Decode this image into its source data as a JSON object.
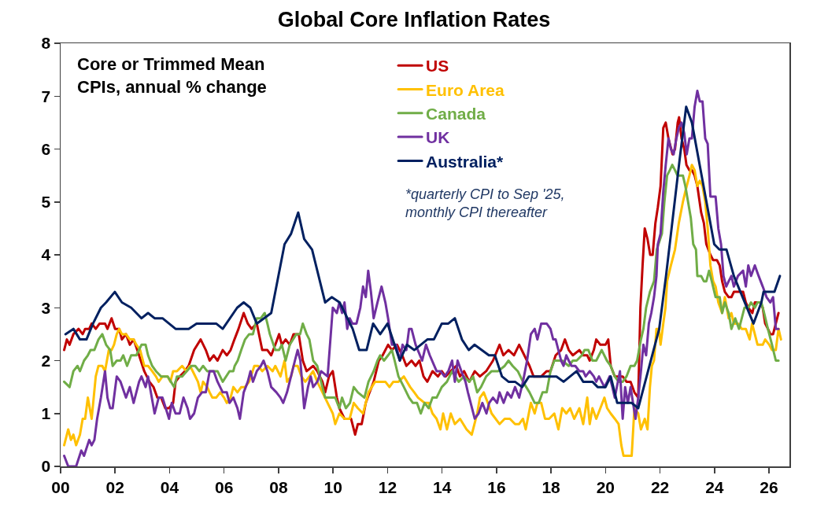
{
  "chart_data": {
    "type": "line",
    "title": "Global Core Inflation Rates",
    "annotations": [
      "Core or Trimmed Mean\nCPIs, annual % change",
      "*quarterly CPI to Sep '25,\nmonthly CPI thereafter"
    ],
    "xlim": [
      2000,
      2026.75
    ],
    "xticks": [
      {
        "value": 2000,
        "label": "00"
      },
      {
        "value": 2002,
        "label": "02"
      },
      {
        "value": 2004,
        "label": "04"
      },
      {
        "value": 2006,
        "label": "06"
      },
      {
        "value": 2008,
        "label": "08"
      },
      {
        "value": 2010,
        "label": "10"
      },
      {
        "value": 2012,
        "label": "12"
      },
      {
        "value": 2014,
        "label": "14"
      },
      {
        "value": 2016,
        "label": "16"
      },
      {
        "value": 2018,
        "label": "18"
      },
      {
        "value": 2020,
        "label": "20"
      },
      {
        "value": 2022,
        "label": "22"
      },
      {
        "value": 2024,
        "label": "24"
      },
      {
        "value": 2026,
        "label": "26"
      }
    ],
    "ylim": [
      0,
      8
    ],
    "yticks": [
      0,
      1,
      2,
      3,
      4,
      5,
      6,
      7,
      8
    ],
    "grid": false,
    "legend": "top",
    "series": [
      {
        "name": "US",
        "color": "#c00000",
        "x": [
          2000.13,
          2000.23,
          2000.33,
          2000.47,
          2000.66,
          2000.81,
          2000.9,
          2001.05,
          2001.14,
          2001.29,
          2001.43,
          2001.63,
          2001.72,
          2001.87,
          2002.0,
          2002.15,
          2002.25,
          2002.4,
          2002.54,
          2002.68,
          2002.88,
          2003.07,
          2003.26,
          2003.41,
          2003.55,
          2003.69,
          2003.84,
          2003.98,
          2004.13,
          2004.22,
          2004.37,
          2004.56,
          2004.7,
          2004.9,
          2005.14,
          2005.33,
          2005.47,
          2005.62,
          2005.76,
          2005.95,
          2006.1,
          2006.24,
          2006.38,
          2006.53,
          2006.72,
          2006.87,
          2007.01,
          2007.2,
          2007.4,
          2007.59,
          2007.73,
          2007.88,
          2008.02,
          2008.12,
          2008.26,
          2008.41,
          2008.55,
          2008.74,
          2008.89,
          2009.03,
          2009.27,
          2009.42,
          2009.61,
          2009.71,
          2009.85,
          2009.99,
          2010.14,
          2010.23,
          2010.42,
          2010.66,
          2010.81,
          2010.91,
          2011.05,
          2011.2,
          2011.34,
          2011.49,
          2011.68,
          2011.82,
          2012.02,
          2012.16,
          2012.35,
          2012.54,
          2012.69,
          2012.88,
          2013.03,
          2013.17,
          2013.32,
          2013.46,
          2013.65,
          2013.85,
          2013.99,
          2014.13,
          2014.32,
          2014.52,
          2014.66,
          2014.81,
          2015.0,
          2015.2,
          2015.39,
          2015.62,
          2015.87,
          2016.11,
          2016.25,
          2016.44,
          2016.64,
          2016.83,
          2017.02,
          2017.21,
          2017.36,
          2017.64,
          2017.84,
          2017.98,
          2018.17,
          2018.37,
          2018.51,
          2018.65,
          2018.8,
          2019.04,
          2019.18,
          2019.33,
          2019.42,
          2019.57,
          2019.66,
          2019.81,
          2020.0,
          2020.1,
          2020.19,
          2020.34,
          2020.48,
          2020.63,
          2020.77,
          2020.92,
          2021.06,
          2021.2,
          2021.28,
          2021.36,
          2021.44,
          2021.54,
          2021.64,
          2021.73,
          2021.83,
          2021.92,
          2022.02,
          2022.12,
          2022.21,
          2022.31,
          2022.46,
          2022.55,
          2022.65,
          2022.7,
          2022.79,
          2022.89,
          2022.97,
          2023.08,
          2023.17,
          2023.27,
          2023.37,
          2023.51,
          2023.61,
          2023.7,
          2023.85,
          2023.95,
          2024.09,
          2024.19,
          2024.28,
          2024.38,
          2024.52,
          2024.62,
          2024.71,
          2024.9,
          2025.05,
          2025.15,
          2025.24,
          2025.39,
          2025.48,
          2025.67,
          2025.77,
          2025.86,
          2025.96,
          2026.05,
          2026.15,
          2026.25,
          2026.35
        ],
        "values": [
          2.2,
          2.4,
          2.3,
          2.5,
          2.6,
          2.5,
          2.6,
          2.6,
          2.7,
          2.6,
          2.7,
          2.7,
          2.6,
          2.8,
          2.6,
          2.6,
          2.4,
          2.5,
          2.3,
          2.4,
          2.1,
          1.8,
          1.6,
          1.5,
          1.3,
          1.3,
          1.1,
          1.1,
          1.2,
          1.6,
          1.7,
          1.8,
          1.9,
          2.2,
          2.4,
          2.2,
          2.0,
          2.1,
          2.0,
          2.2,
          2.1,
          2.2,
          2.4,
          2.6,
          2.9,
          2.7,
          2.6,
          2.7,
          2.2,
          2.2,
          2.1,
          2.3,
          2.5,
          2.3,
          2.4,
          2.3,
          2.5,
          2.5,
          2.0,
          1.8,
          1.9,
          1.8,
          1.6,
          1.4,
          1.7,
          1.8,
          1.3,
          1.1,
          0.9,
          0.9,
          0.6,
          0.8,
          0.8,
          1.2,
          1.4,
          1.6,
          2.0,
          2.1,
          2.3,
          2.2,
          2.3,
          2.1,
          1.9,
          2.0,
          1.9,
          2.0,
          1.7,
          1.6,
          1.8,
          1.7,
          1.8,
          1.7,
          1.8,
          1.9,
          1.7,
          1.8,
          1.6,
          1.8,
          1.7,
          1.8,
          2.0,
          2.3,
          2.1,
          2.2,
          2.1,
          2.3,
          2.1,
          1.9,
          1.7,
          1.7,
          1.8,
          1.8,
          2.1,
          2.2,
          2.4,
          2.2,
          2.1,
          2.2,
          2.1,
          2.1,
          2.0,
          2.2,
          2.4,
          2.3,
          2.3,
          2.4,
          1.9,
          1.7,
          1.7,
          1.7,
          1.6,
          1.6,
          1.4,
          1.3,
          3.0,
          3.8,
          4.5,
          4.3,
          4.0,
          4.0,
          4.6,
          4.9,
          5.3,
          6.4,
          6.5,
          6.2,
          5.9,
          6.0,
          6.5,
          6.6,
          6.2,
          6.0,
          5.7,
          5.6,
          5.6,
          5.5,
          5.3,
          4.8,
          4.6,
          4.2,
          4.0,
          3.9,
          3.9,
          3.8,
          3.5,
          3.3,
          3.2,
          3.2,
          3.3,
          3.3,
          3.3,
          3.1,
          3.0,
          2.9,
          3.1,
          3.1,
          3.0,
          2.7,
          2.6,
          2.5,
          2.5,
          2.7,
          2.9
        ]
      },
      {
        "name": "Euro Area",
        "color": "#ffc000",
        "x": [
          2000.13,
          2000.28,
          2000.38,
          2000.47,
          2000.57,
          2000.71,
          2000.81,
          2000.9,
          2001.0,
          2001.14,
          2001.29,
          2001.39,
          2001.53,
          2001.63,
          2001.77,
          2001.87,
          2001.96,
          2002.06,
          2002.15,
          2002.25,
          2002.4,
          2002.54,
          2002.68,
          2002.78,
          2002.92,
          2003.07,
          2003.21,
          2003.36,
          2003.5,
          2003.6,
          2003.74,
          2003.93,
          2004.03,
          2004.13,
          2004.27,
          2004.46,
          2004.61,
          2004.75,
          2004.85,
          2005.04,
          2005.14,
          2005.23,
          2005.38,
          2005.47,
          2005.57,
          2005.71,
          2005.86,
          2006.0,
          2006.1,
          2006.24,
          2006.34,
          2006.49,
          2006.63,
          2006.77,
          2006.92,
          2007.11,
          2007.25,
          2007.4,
          2007.59,
          2007.78,
          2007.88,
          2008.07,
          2008.22,
          2008.31,
          2008.46,
          2008.55,
          2008.7,
          2008.84,
          2008.98,
          2009.13,
          2009.27,
          2009.42,
          2009.61,
          2009.8,
          2009.99,
          2010.08,
          2010.23,
          2010.42,
          2010.61,
          2010.76,
          2010.91,
          2011.1,
          2011.3,
          2011.54,
          2011.68,
          2011.92,
          2012.07,
          2012.21,
          2012.4,
          2012.6,
          2012.83,
          2012.98,
          2013.12,
          2013.36,
          2013.51,
          2013.65,
          2013.8,
          2013.94,
          2014.04,
          2014.18,
          2014.32,
          2014.47,
          2014.66,
          2014.9,
          2015.09,
          2015.19,
          2015.29,
          2015.39,
          2015.53,
          2015.68,
          2015.82,
          2016.11,
          2016.3,
          2016.49,
          2016.68,
          2016.83,
          2016.97,
          2017.07,
          2017.26,
          2017.4,
          2017.5,
          2017.64,
          2017.78,
          2017.93,
          2018.12,
          2018.27,
          2018.41,
          2018.56,
          2018.7,
          2018.85,
          2019.04,
          2019.18,
          2019.33,
          2019.42,
          2019.52,
          2019.66,
          2019.81,
          2019.96,
          2020.06,
          2020.19,
          2020.34,
          2020.48,
          2020.58,
          2020.66,
          2020.96,
          2021.06,
          2021.2,
          2021.3,
          2021.44,
          2021.54,
          2021.63,
          2021.7,
          2021.78,
          2021.87,
          2021.96,
          2022.02,
          2022.12,
          2022.2,
          2022.26,
          2022.4,
          2022.55,
          2022.69,
          2022.84,
          2022.93,
          2023.08,
          2023.17,
          2023.27,
          2023.37,
          2023.46,
          2023.56,
          2023.66,
          2023.75,
          2023.85,
          2023.95,
          2024.04,
          2024.14,
          2024.28,
          2024.38,
          2024.52,
          2024.62,
          2024.71,
          2024.86,
          2025.0,
          2025.15,
          2025.29,
          2025.38,
          2025.48,
          2025.58,
          2025.77,
          2025.86,
          2026.01,
          2026.11,
          2026.25,
          2026.35,
          2026.44
        ],
        "values": [
          0.4,
          0.7,
          0.5,
          0.6,
          0.4,
          0.6,
          0.9,
          0.9,
          1.3,
          0.9,
          1.7,
          1.9,
          1.9,
          1.8,
          2.2,
          2.2,
          2.3,
          2.5,
          2.6,
          2.5,
          2.5,
          2.4,
          2.4,
          2.3,
          2.2,
          1.9,
          1.9,
          1.8,
          1.7,
          1.6,
          1.7,
          1.7,
          1.6,
          1.8,
          1.8,
          1.9,
          1.8,
          1.9,
          1.8,
          1.6,
          1.4,
          1.6,
          1.5,
          1.4,
          1.3,
          1.3,
          1.4,
          1.3,
          1.2,
          1.3,
          1.5,
          1.4,
          1.5,
          1.5,
          1.6,
          1.9,
          1.9,
          1.8,
          1.9,
          1.8,
          1.9,
          1.7,
          2.0,
          1.6,
          1.7,
          1.9,
          1.9,
          1.7,
          1.6,
          1.7,
          1.8,
          1.6,
          1.4,
          1.2,
          1.0,
          0.8,
          1.0,
          0.9,
          0.9,
          1.2,
          1.1,
          1.0,
          1.4,
          1.6,
          1.6,
          1.6,
          1.5,
          1.6,
          1.6,
          1.7,
          1.5,
          1.4,
          1.3,
          1.2,
          1.2,
          1.0,
          0.9,
          0.7,
          1.0,
          0.7,
          1.0,
          0.8,
          0.9,
          0.7,
          0.6,
          0.8,
          1.0,
          1.3,
          1.4,
          1.2,
          1.0,
          0.8,
          0.9,
          0.9,
          0.8,
          0.8,
          0.9,
          0.7,
          1.2,
          1.0,
          1.2,
          1.2,
          0.9,
          0.9,
          1.0,
          0.7,
          1.1,
          1.0,
          1.1,
          0.9,
          1.1,
          0.8,
          1.3,
          0.8,
          1.1,
          0.9,
          1.1,
          1.3,
          1.1,
          1.0,
          0.9,
          0.8,
          0.4,
          0.2,
          0.2,
          1.1,
          1.0,
          0.7,
          0.9,
          0.7,
          1.5,
          1.9,
          2.0,
          2.6,
          2.6,
          2.3,
          2.7,
          3.0,
          3.5,
          3.8,
          4.1,
          4.6,
          5.0,
          5.2,
          5.5,
          5.7,
          5.6,
          5.3,
          5.4,
          5.3,
          5.0,
          4.5,
          3.8,
          3.5,
          3.4,
          3.1,
          2.9,
          3.2,
          2.8,
          2.9,
          2.7,
          2.7,
          2.6,
          2.6,
          2.4,
          2.7,
          2.5,
          2.3,
          2.3,
          2.4,
          2.3,
          2.2,
          2.2,
          2.6,
          2.4
        ]
      },
      {
        "name": "Canada",
        "color": "#70ad47",
        "x": [
          2000.13,
          2000.33,
          2000.47,
          2000.62,
          2000.71,
          2000.86,
          2001.0,
          2001.1,
          2001.24,
          2001.39,
          2001.53,
          2001.67,
          2001.82,
          2001.91,
          2002.06,
          2002.2,
          2002.3,
          2002.44,
          2002.59,
          2002.78,
          2002.97,
          2003.12,
          2003.21,
          2003.36,
          2003.5,
          2003.69,
          2003.93,
          2004.17,
          2004.27,
          2004.46,
          2004.8,
          2004.94,
          2005.09,
          2005.23,
          2005.38,
          2005.57,
          2005.76,
          2005.95,
          2006.2,
          2006.34,
          2006.39,
          2006.5,
          2006.63,
          2006.77,
          2006.92,
          2007.06,
          2007.2,
          2007.35,
          2007.49,
          2007.59,
          2007.68,
          2007.88,
          2008.02,
          2008.12,
          2008.26,
          2008.41,
          2008.65,
          2008.79,
          2008.89,
          2009.03,
          2009.13,
          2009.27,
          2009.42,
          2009.56,
          2009.71,
          2010.08,
          2010.23,
          2010.33,
          2010.47,
          2010.62,
          2010.76,
          2010.91,
          2011.15,
          2011.3,
          2011.49,
          2011.63,
          2011.73,
          2011.87,
          2012.02,
          2012.16,
          2012.26,
          2012.4,
          2012.6,
          2012.79,
          2012.93,
          2013.08,
          2013.22,
          2013.36,
          2013.51,
          2013.65,
          2013.8,
          2013.99,
          2014.18,
          2014.37,
          2014.61,
          2014.81,
          2015.0,
          2015.14,
          2015.29,
          2015.43,
          2015.62,
          2015.82,
          2016.06,
          2016.3,
          2016.44,
          2016.59,
          2016.78,
          2016.97,
          2017.21,
          2017.4,
          2017.55,
          2017.69,
          2017.84,
          2017.98,
          2018.12,
          2018.27,
          2018.41,
          2018.65,
          2018.8,
          2018.94,
          2019.13,
          2019.23,
          2019.37,
          2019.52,
          2019.66,
          2019.86,
          2020.05,
          2020.19,
          2020.34,
          2020.48,
          2020.63,
          2020.77,
          2020.92,
          2021.06,
          2021.16,
          2021.3,
          2021.39,
          2021.49,
          2021.63,
          2021.78,
          2021.88,
          2022.07,
          2022.16,
          2022.26,
          2022.36,
          2022.45,
          2022.55,
          2022.64,
          2022.74,
          2022.84,
          2022.93,
          2023.03,
          2023.13,
          2023.22,
          2023.32,
          2023.37,
          2023.51,
          2023.61,
          2023.7,
          2023.8,
          2023.9,
          2024.04,
          2024.19,
          2024.28,
          2024.38,
          2024.52,
          2024.62,
          2024.76,
          2024.9,
          2025.1,
          2025.24,
          2025.34,
          2025.48,
          2025.58,
          2025.72,
          2025.82,
          2025.96,
          2026.11,
          2026.25,
          2026.35
        ],
        "values": [
          1.6,
          1.5,
          1.8,
          1.9,
          1.8,
          2.0,
          2.1,
          2.2,
          2.2,
          2.4,
          2.5,
          2.3,
          2.2,
          1.9,
          2.0,
          2.0,
          2.1,
          1.9,
          2.1,
          2.1,
          2.3,
          2.3,
          2.1,
          1.9,
          1.8,
          1.7,
          1.7,
          1.5,
          1.7,
          1.7,
          1.9,
          1.9,
          1.8,
          1.9,
          1.8,
          1.8,
          1.8,
          1.6,
          1.8,
          1.8,
          1.9,
          2.0,
          2.2,
          2.4,
          2.5,
          2.5,
          2.8,
          2.8,
          2.9,
          2.7,
          2.5,
          2.2,
          2.2,
          2.3,
          2.0,
          2.3,
          2.5,
          2.5,
          2.7,
          2.5,
          2.4,
          2.0,
          1.9,
          1.6,
          1.3,
          1.3,
          1.1,
          1.3,
          1.1,
          1.2,
          1.5,
          1.4,
          1.3,
          1.6,
          1.8,
          2.0,
          2.1,
          2.0,
          2.1,
          2.2,
          2.0,
          1.7,
          1.5,
          1.3,
          1.2,
          1.2,
          1.0,
          1.2,
          1.1,
          1.3,
          1.3,
          1.5,
          1.6,
          1.8,
          1.6,
          1.7,
          1.6,
          1.7,
          1.4,
          1.5,
          1.7,
          1.8,
          1.8,
          1.9,
          2.0,
          1.9,
          1.8,
          1.6,
          1.4,
          1.2,
          1.2,
          1.4,
          1.4,
          1.8,
          2.0,
          2.0,
          2.0,
          1.9,
          2.0,
          2.0,
          2.1,
          2.2,
          2.2,
          2.0,
          2.0,
          2.2,
          2.0,
          1.9,
          1.7,
          1.6,
          1.6,
          1.7,
          1.9,
          1.9,
          2.0,
          2.4,
          2.6,
          3.0,
          3.3,
          3.5,
          4.1,
          4.4,
          5.0,
          5.5,
          5.6,
          5.7,
          5.6,
          5.5,
          5.5,
          5.5,
          5.3,
          5.0,
          4.7,
          4.2,
          4.1,
          3.6,
          3.6,
          3.5,
          3.5,
          3.7,
          3.5,
          3.2,
          3.2,
          2.9,
          3.1,
          2.9,
          2.6,
          2.8,
          2.6,
          3.0,
          3.0,
          3.1,
          3.0,
          3.1,
          3.1,
          2.9,
          2.6,
          2.3,
          2.0,
          2.0
        ]
      },
      {
        "name": "UK",
        "color": "#7030a0",
        "x": [
          2000.13,
          2000.28,
          2000.42,
          2000.57,
          2000.76,
          2000.86,
          2001.05,
          2001.14,
          2001.24,
          2001.34,
          2001.48,
          2001.63,
          2001.72,
          2001.82,
          2001.91,
          2002.06,
          2002.2,
          2002.4,
          2002.54,
          2002.68,
          2002.88,
          2002.97,
          2003.12,
          2003.21,
          2003.45,
          2003.6,
          2003.74,
          2003.98,
          2004.08,
          2004.22,
          2004.37,
          2004.51,
          2004.66,
          2004.75,
          2004.9,
          2005.04,
          2005.19,
          2005.33,
          2005.47,
          2005.62,
          2005.76,
          2005.95,
          2006.1,
          2006.2,
          2006.34,
          2006.49,
          2006.58,
          2006.72,
          2006.87,
          2006.97,
          2007.06,
          2007.2,
          2007.35,
          2007.45,
          2007.59,
          2007.73,
          2007.92,
          2008.07,
          2008.17,
          2008.31,
          2008.6,
          2008.7,
          2008.8,
          2008.94,
          2009.08,
          2009.18,
          2009.27,
          2009.42,
          2009.56,
          2009.8,
          2009.99,
          2010.14,
          2010.23,
          2010.33,
          2010.42,
          2010.52,
          2010.61,
          2010.71,
          2010.86,
          2011.0,
          2011.1,
          2011.2,
          2011.29,
          2011.39,
          2011.49,
          2011.63,
          2011.78,
          2011.92,
          2012.02,
          2012.16,
          2012.31,
          2012.45,
          2012.55,
          2012.69,
          2012.79,
          2012.88,
          2013.03,
          2013.27,
          2013.41,
          2013.55,
          2013.8,
          2013.94,
          2014.09,
          2014.23,
          2014.37,
          2014.47,
          2014.57,
          2014.71,
          2014.86,
          2014.95,
          2015.2,
          2015.34,
          2015.48,
          2015.63,
          2015.73,
          2015.87,
          2016.02,
          2016.11,
          2016.26,
          2016.4,
          2016.54,
          2016.68,
          2016.83,
          2016.97,
          2017.12,
          2017.26,
          2017.4,
          2017.5,
          2017.64,
          2017.84,
          2017.98,
          2018.08,
          2018.17,
          2018.37,
          2018.46,
          2018.56,
          2018.65,
          2018.75,
          2018.89,
          2019.04,
          2019.18,
          2019.27,
          2019.42,
          2019.57,
          2019.66,
          2019.76,
          2019.86,
          2019.96,
          2020.06,
          2020.15,
          2020.25,
          2020.34,
          2020.53,
          2020.63,
          2020.72,
          2020.82,
          2020.92,
          2021.1,
          2021.2,
          2021.3,
          2021.39,
          2021.49,
          2021.59,
          2021.68,
          2021.78,
          2021.87,
          2021.92,
          2022.02,
          2022.12,
          2022.21,
          2022.31,
          2022.4,
          2022.5,
          2022.6,
          2022.69,
          2022.79,
          2022.89,
          2022.98,
          2023.08,
          2023.17,
          2023.27,
          2023.37,
          2023.46,
          2023.56,
          2023.66,
          2023.75,
          2023.85,
          2023.95,
          2024.04,
          2024.14,
          2024.24,
          2024.33,
          2024.43,
          2024.52,
          2024.62,
          2024.71,
          2024.86,
          2025.05,
          2025.15,
          2025.24,
          2025.34,
          2025.48,
          2025.62,
          2025.77,
          2025.91,
          2026.05,
          2026.15,
          2026.25,
          2026.35
        ],
        "values": [
          0.2,
          0.0,
          0.0,
          0.0,
          0.3,
          0.2,
          0.5,
          0.4,
          0.5,
          0.9,
          1.3,
          1.8,
          1.3,
          1.1,
          1.1,
          1.7,
          1.6,
          1.3,
          1.5,
          1.2,
          1.6,
          1.7,
          1.5,
          1.7,
          1.0,
          1.3,
          1.3,
          0.9,
          1.2,
          1.0,
          1.0,
          1.3,
          1.1,
          0.9,
          1.0,
          1.3,
          1.4,
          1.4,
          1.8,
          1.8,
          1.6,
          1.4,
          1.4,
          1.2,
          1.3,
          1.1,
          0.9,
          1.4,
          1.6,
          1.8,
          1.6,
          1.8,
          1.9,
          2.0,
          1.8,
          1.5,
          1.4,
          1.3,
          1.2,
          1.4,
          2.0,
          2.2,
          2.0,
          1.1,
          1.5,
          1.7,
          1.5,
          1.6,
          1.8,
          1.7,
          3.0,
          2.9,
          3.1,
          2.9,
          3.1,
          2.6,
          2.8,
          2.7,
          2.7,
          3.0,
          3.4,
          3.2,
          3.7,
          3.3,
          2.8,
          3.1,
          3.4,
          3.1,
          2.8,
          2.3,
          2.3,
          2.0,
          2.3,
          2.2,
          2.6,
          2.6,
          2.3,
          2.0,
          2.3,
          2.1,
          1.8,
          1.8,
          1.7,
          1.8,
          2.0,
          1.6,
          2.0,
          1.8,
          1.6,
          1.4,
          0.9,
          1.0,
          1.2,
          1.0,
          1.2,
          1.3,
          1.2,
          1.4,
          1.2,
          1.4,
          1.3,
          1.5,
          1.3,
          1.6,
          2.0,
          2.5,
          2.6,
          2.4,
          2.7,
          2.7,
          2.6,
          2.4,
          2.4,
          2.0,
          1.9,
          2.1,
          2.0,
          1.9,
          1.9,
          1.8,
          1.8,
          1.7,
          1.8,
          1.7,
          1.6,
          1.7,
          1.6,
          1.5,
          1.6,
          1.7,
          1.5,
          1.3,
          1.8,
          0.9,
          1.5,
          1.2,
          1.5,
          0.9,
          1.3,
          1.8,
          2.3,
          2.1,
          2.7,
          2.9,
          3.2,
          3.6,
          4.2,
          4.4,
          5.2,
          5.7,
          6.2,
          6.0,
          5.9,
          6.2,
          6.4,
          6.5,
          6.3,
          5.9,
          6.2,
          6.2,
          6.8,
          7.1,
          6.9,
          6.9,
          6.2,
          6.1,
          5.1,
          5.1,
          5.1,
          4.5,
          4.2,
          3.6,
          3.4,
          3.5,
          3.6,
          3.4,
          3.6,
          3.7,
          3.4,
          3.8,
          3.6,
          3.8,
          3.6,
          3.4,
          3.2,
          3.1,
          3.2,
          2.6,
          2.6
        ]
      },
      {
        "name": "Australia*",
        "color": "#002060",
        "x": [
          2000.18,
          2000.47,
          2000.71,
          2000.95,
          2001.19,
          2001.48,
          2001.67,
          2001.99,
          2002.25,
          2002.59,
          2002.97,
          2003.21,
          2003.45,
          2003.74,
          2004.22,
          2004.7,
          2004.99,
          2005.71,
          2005.95,
          2006.48,
          2006.72,
          2006.96,
          2007.2,
          2007.73,
          2008.22,
          2008.46,
          2008.72,
          2008.94,
          2009.23,
          2009.71,
          2009.95,
          2010.24,
          2010.72,
          2010.96,
          2011.23,
          2011.47,
          2011.73,
          2012.0,
          2012.45,
          2012.71,
          2012.98,
          2013.46,
          2013.7,
          2013.99,
          2014.23,
          2014.47,
          2014.73,
          2014.98,
          2015.19,
          2015.72,
          2015.94,
          2016.2,
          2016.44,
          2016.68,
          2016.94,
          2017.19,
          2018.2,
          2018.46,
          2018.94,
          2019.18,
          2019.52,
          2019.71,
          2020.0,
          2020.19,
          2020.43,
          2020.96,
          2021.2,
          2021.97,
          2022.22,
          2022.47,
          2022.72,
          2022.96,
          2023.17,
          2023.99,
          2024.18,
          2024.44,
          2024.71,
          2025.43,
          2025.72,
          2025.8,
          2026.2,
          2026.4
        ],
        "values": [
          2.5,
          2.6,
          2.4,
          2.4,
          2.7,
          3.0,
          3.1,
          3.3,
          3.1,
          3.0,
          2.8,
          2.9,
          2.8,
          2.8,
          2.6,
          2.6,
          2.7,
          2.7,
          2.6,
          3.0,
          3.1,
          3.0,
          2.7,
          2.9,
          4.2,
          4.4,
          4.8,
          4.3,
          4.1,
          3.1,
          3.2,
          3.1,
          2.6,
          2.2,
          2.2,
          2.7,
          2.5,
          2.7,
          2.0,
          2.3,
          2.2,
          2.4,
          2.4,
          2.7,
          2.7,
          2.8,
          2.4,
          2.2,
          2.3,
          2.1,
          2.1,
          1.7,
          1.6,
          1.6,
          1.5,
          1.7,
          1.7,
          1.6,
          1.8,
          1.6,
          1.6,
          1.5,
          1.5,
          1.7,
          1.2,
          1.2,
          1.1,
          2.6,
          3.6,
          4.7,
          5.8,
          6.8,
          6.5,
          4.2,
          4.1,
          4.1,
          3.6,
          2.7,
          3.1,
          3.3,
          3.3,
          3.6
        ]
      }
    ]
  }
}
